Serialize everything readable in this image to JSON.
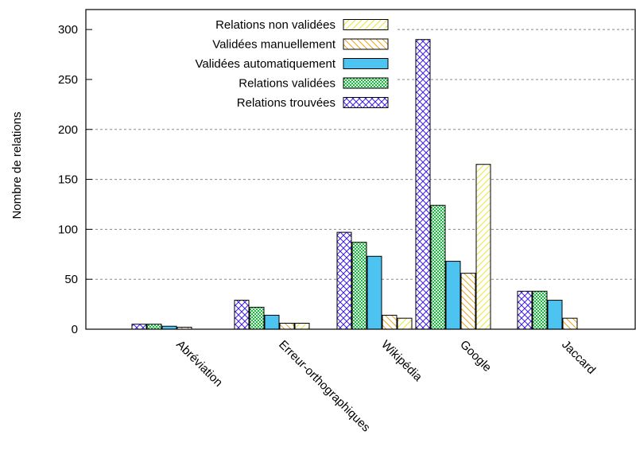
{
  "chart_data": {
    "type": "bar",
    "title": "",
    "xlabel": "",
    "ylabel": "Nombre de relations",
    "ylim": [
      0,
      320
    ],
    "yticks": [
      0,
      50,
      100,
      150,
      200,
      250,
      300
    ],
    "grid": "horizontal dashed",
    "legend_position": "top-left",
    "categories": [
      "Abréviation",
      "Erreur-orthographiques",
      "Wikipédia",
      "Google",
      "Jaccard"
    ],
    "series": [
      {
        "name": "Relations trouvées",
        "pattern": "crosshatch",
        "color": "#3b1ee6",
        "values": [
          5,
          29,
          97,
          290,
          38
        ]
      },
      {
        "name": "Relations validées",
        "pattern": "checker",
        "color": "#27b24a",
        "values": [
          5,
          22,
          87,
          124,
          38
        ]
      },
      {
        "name": "Validées automatiquement",
        "pattern": "solid",
        "color": "#4cc3f0",
        "values": [
          3,
          14,
          73,
          68,
          29
        ]
      },
      {
        "name": "Validées manuellement",
        "pattern": "backslash",
        "color": "#e7a425",
        "values": [
          2,
          6,
          14,
          56,
          11
        ]
      },
      {
        "name": "Relations non validées",
        "pattern": "slash",
        "color": "#e6e63c",
        "values": [
          0,
          6,
          11,
          165,
          0
        ]
      }
    ],
    "legend_order": [
      "Relations non validées",
      "Validées manuellement",
      "Validées automatiquement",
      "Relations validées",
      "Relations trouvées"
    ]
  }
}
